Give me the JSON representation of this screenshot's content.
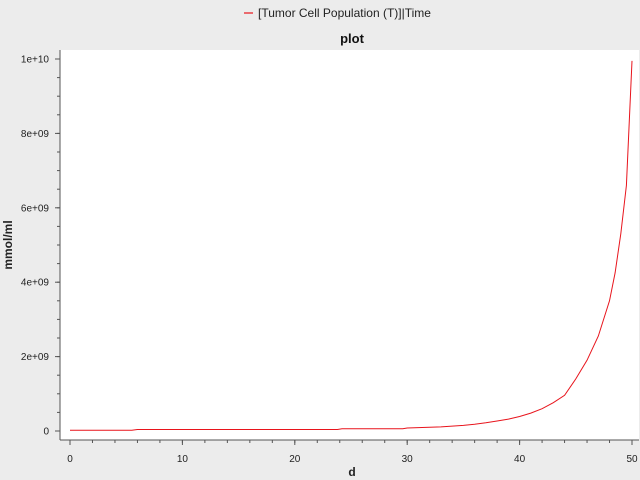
{
  "chart_data": {
    "type": "line",
    "title": "plot",
    "xlabel": "d",
    "ylabel": "mmol/ml",
    "xlim": [
      0,
      50
    ],
    "ylim": [
      0,
      10000000000
    ],
    "x_ticks": [
      0,
      10,
      20,
      30,
      40,
      50
    ],
    "x_tick_labels": [
      "0",
      "10",
      "20",
      "30",
      "40",
      "50"
    ],
    "y_ticks": [
      0,
      2000000000,
      4000000000,
      6000000000,
      8000000000,
      10000000000
    ],
    "y_tick_labels": [
      "0",
      "2e+09",
      "4e+09",
      "6e+09",
      "8e+09",
      "1e+10"
    ],
    "grid": false,
    "legend_position": "top-center",
    "series": [
      {
        "name": "[Tumor Cell Population (T)]|Time",
        "color": "#e8141c",
        "x": [
          0,
          5.5,
          6,
          23.8,
          24.2,
          29.6,
          30,
          33,
          35,
          36,
          37,
          38,
          39,
          40,
          41,
          42,
          43,
          44,
          45,
          46,
          47,
          48,
          48.5,
          49,
          49.5,
          50
        ],
        "y": [
          20000000,
          20000000,
          40000000,
          40000000,
          60000000,
          60000000,
          80000000,
          110000000,
          150000000,
          180000000,
          220000000,
          270000000,
          320000000,
          390000000,
          480000000,
          600000000,
          760000000,
          960000000,
          1400000000,
          1900000000,
          2550000000,
          3500000000,
          4250000000,
          5300000000,
          6600000000,
          9950000000
        ]
      }
    ]
  }
}
